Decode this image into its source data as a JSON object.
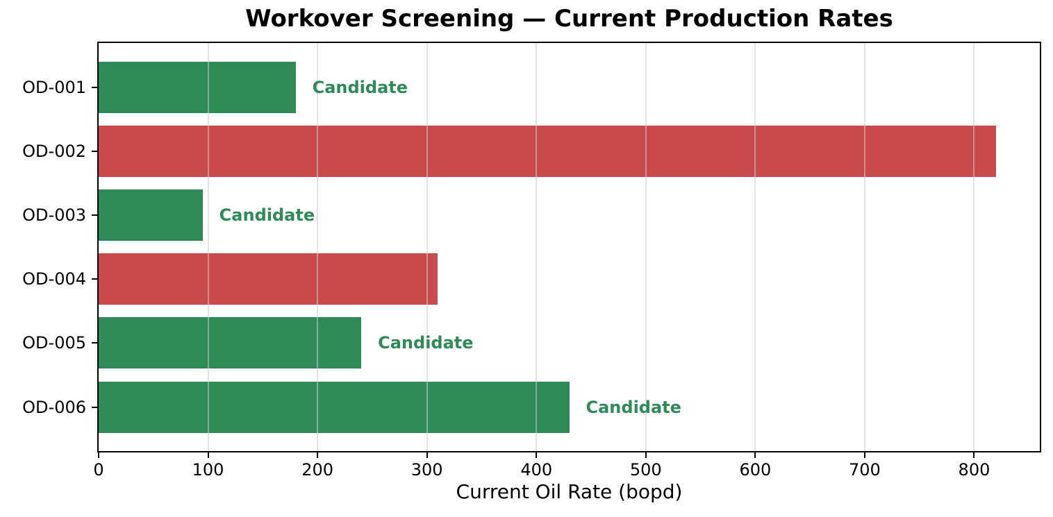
{
  "chart_data": {
    "type": "bar",
    "orientation": "horizontal",
    "title": "Workover Screening — Current Production Rates",
    "xlabel": "Current Oil Rate (bopd)",
    "ylabel": "",
    "categories": [
      "OD-001",
      "OD-002",
      "OD-003",
      "OD-004",
      "OD-005",
      "OD-006"
    ],
    "values": [
      180,
      820,
      95,
      310,
      240,
      430
    ],
    "candidate_flags": [
      true,
      false,
      true,
      false,
      true,
      true
    ],
    "annotation_label": "Candidate",
    "xticks": [
      0,
      100,
      200,
      300,
      400,
      500,
      600,
      700,
      800
    ],
    "xlim": [
      0,
      860
    ],
    "grid": "vertical-gridlines-over-bars",
    "legend": "none",
    "colors": {
      "candidate_bar": "#2e8b57",
      "non_candidate_bar": "#c84a4a",
      "annotation_text": "#2e8b57",
      "gridline": "#cfcfcf",
      "spine": "#000000",
      "background": "#ffffff",
      "text": "#000000"
    }
  }
}
